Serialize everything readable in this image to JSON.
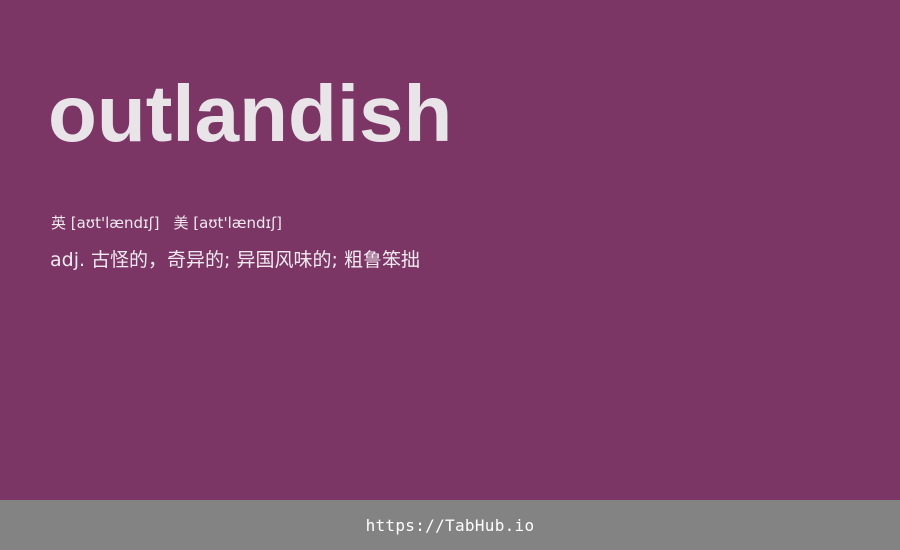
{
  "entry": {
    "word": "outlandish",
    "phonetics": {
      "uk": "英 [aʊt'lændɪʃ]",
      "us": "美 [aʊt'lændɪʃ]"
    },
    "definition": "adj. 古怪的，奇异的; 异国风味的; 粗鲁笨拙"
  },
  "footer": {
    "link_text": "https://TabHub.io"
  },
  "colors": {
    "background": "#7b3666",
    "footer_background": "#838383",
    "word_text": "#e8e4e8"
  }
}
